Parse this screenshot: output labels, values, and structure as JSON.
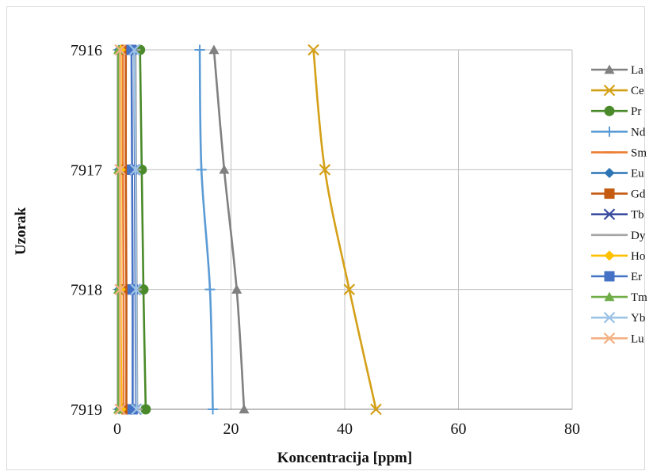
{
  "chart_data": {
    "type": "line",
    "orientation": "horizontal",
    "title": "",
    "xlabel": "Koncentracija [ppm]",
    "ylabel": "Uzorak",
    "xlim": [
      0,
      80
    ],
    "xticks": [
      0,
      20,
      40,
      60,
      80
    ],
    "categories": [
      "7916",
      "7917",
      "7918",
      "7919"
    ],
    "grid": true,
    "legend_position": "right",
    "series": [
      {
        "name": "La",
        "color": "#808080",
        "marker": "triangle",
        "values": [
          17.0,
          18.8,
          21.0,
          22.3
        ]
      },
      {
        "name": "Ce",
        "color": "#d4a017",
        "marker": "x",
        "values": [
          34.5,
          36.5,
          40.8,
          45.5
        ]
      },
      {
        "name": "Pr",
        "color": "#4a8a2a",
        "marker": "circle",
        "values": [
          4.0,
          4.3,
          4.6,
          5.0
        ]
      },
      {
        "name": "Nd",
        "color": "#5b9bd5",
        "marker": "plus",
        "values": [
          14.5,
          14.8,
          16.3,
          16.8
        ]
      },
      {
        "name": "Sm",
        "color": "#ed7d31",
        "marker": "dash",
        "values": [
          1.0,
          1.0,
          1.1,
          1.1
        ]
      },
      {
        "name": "Eu",
        "color": "#2e75b6",
        "marker": "diamond",
        "values": [
          0.3,
          0.3,
          0.3,
          0.3
        ]
      },
      {
        "name": "Gd",
        "color": "#c55a11",
        "marker": "square",
        "values": [
          1.5,
          1.5,
          1.6,
          1.6
        ]
      },
      {
        "name": "Tb",
        "color": "#3b4ea0",
        "marker": "x",
        "values": [
          3.0,
          3.1,
          3.2,
          3.3
        ]
      },
      {
        "name": "Dy",
        "color": "#a5a5a5",
        "marker": "dash",
        "values": [
          3.2,
          3.3,
          3.4,
          3.5
        ]
      },
      {
        "name": "Ho",
        "color": "#ffc000",
        "marker": "diamond",
        "values": [
          0.6,
          0.6,
          0.6,
          0.7
        ]
      },
      {
        "name": "Er",
        "color": "#4472c4",
        "marker": "square",
        "values": [
          2.5,
          2.6,
          2.7,
          2.7
        ]
      },
      {
        "name": "Tm",
        "color": "#70ad47",
        "marker": "triangle",
        "values": [
          0.2,
          0.2,
          0.2,
          0.2
        ]
      },
      {
        "name": "Yb",
        "color": "#9dc3e6",
        "marker": "x",
        "values": [
          3.0,
          3.2,
          3.3,
          3.4
        ]
      },
      {
        "name": "Lu",
        "color": "#f4b183",
        "marker": "x",
        "values": [
          0.5,
          0.5,
          0.5,
          0.5
        ]
      }
    ]
  }
}
